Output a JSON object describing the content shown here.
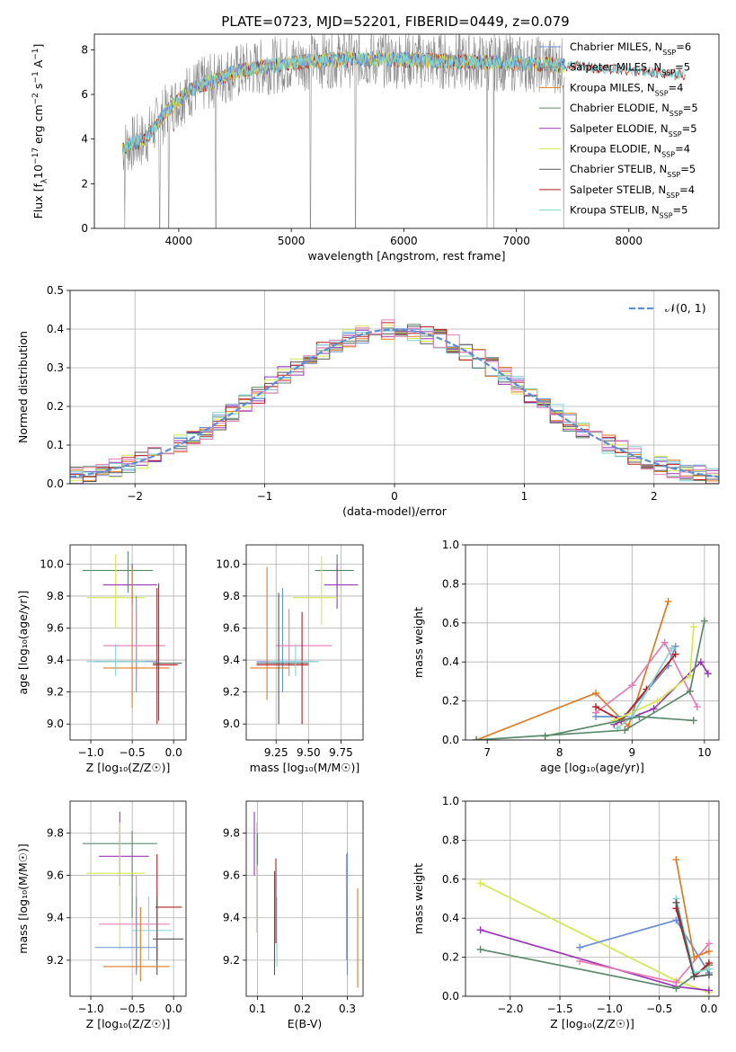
{
  "figure": {
    "title": "PLATE=0723, MJD=52201, FIBERID=0449, z=0.079"
  },
  "colors": {
    "Chabrier MILES": "#6a8fd8",
    "Salpeter MILES": "#8c8c8c",
    "Kroupa MILES": "#e07a1f",
    "Chabrier ELODIE": "#5a8a6a",
    "Salpeter ELODIE": "#9a33b8",
    "Kroupa ELODIE": "#d4e84a",
    "Chabrier STELIB": "#555555",
    "Salpeter STELIB": "#b81c1c",
    "Kroupa STELIB": "#7fd4d4",
    "pink": "#e87ab4",
    "normal": "#5a8fd8"
  },
  "chart_data": [
    {
      "id": "spectrum",
      "type": "line",
      "title": "PLATE=0723, MJD=52201, FIBERID=0449, z=0.079",
      "xlabel": "wavelength [Angstrom, rest frame]",
      "ylabel_parts": [
        "Flux [f",
        "λ",
        "10",
        "−17",
        " erg cm",
        "−2",
        " s",
        "−1",
        " A",
        "−1",
        "]"
      ],
      "xlim": [
        3250,
        8800
      ],
      "ylim": [
        0,
        8.7
      ],
      "xticks": [
        4000,
        5000,
        6000,
        7000,
        8000
      ],
      "xtick_labels": [
        "4000",
        "5000",
        "6000",
        "7000",
        "8000"
      ],
      "yticks": [
        0,
        2,
        4,
        6,
        8
      ],
      "ytick_labels": [
        "0",
        "2",
        "4",
        "6",
        "8"
      ],
      "continuum": {
        "x": [
          3500,
          3700,
          3900,
          4100,
          4300,
          4500,
          4700,
          5000,
          5300,
          5600,
          6000,
          6300,
          6600,
          7000,
          7400,
          7800,
          8200,
          8500
        ],
        "y": [
          3.6,
          4.0,
          5.3,
          6.2,
          6.6,
          7.0,
          7.2,
          7.4,
          7.55,
          7.6,
          7.55,
          7.5,
          7.45,
          7.4,
          7.3,
          7.15,
          7.0,
          6.85
        ]
      },
      "data_range": [
        3500,
        7430
      ],
      "model_range": [
        3500,
        8500
      ],
      "dips": [
        {
          "x": 3520,
          "y": 0.0
        },
        {
          "x": 3830,
          "y": 0.0
        },
        {
          "x": 3910,
          "y": 0.0
        },
        {
          "x": 4330,
          "y": 0.0
        },
        {
          "x": 5170,
          "y": 0.0
        },
        {
          "x": 5570,
          "y": 0.0
        },
        {
          "x": 6740,
          "y": 0.0
        },
        {
          "x": 6800,
          "y": 0.0
        },
        {
          "x": 7420,
          "y": 0.0
        }
      ],
      "legend": {
        "position": "upper right",
        "entries": [
          {
            "name": "Chabrier MILES",
            "n": "6"
          },
          {
            "name": "Salpeter MILES",
            "n": "5"
          },
          {
            "name": "Kroupa MILES",
            "n": "4"
          },
          {
            "name": "Chabrier ELODIE",
            "n": "5"
          },
          {
            "name": "Salpeter ELODIE",
            "n": "5"
          },
          {
            "name": "Kroupa ELODIE",
            "n": "4"
          },
          {
            "name": "Chabrier STELIB",
            "n": "5"
          },
          {
            "name": "Salpeter STELIB",
            "n": "4"
          },
          {
            "name": "Kroupa STELIB",
            "n": "5"
          }
        ],
        "n_label": "N",
        "n_sub": "SSP",
        "n_eq": "="
      }
    },
    {
      "id": "residuals",
      "type": "histogram",
      "xlabel": "(data-model)/error",
      "ylabel": "Normed distribution",
      "xlim": [
        -2.5,
        2.5
      ],
      "ylim": [
        0,
        0.5
      ],
      "xticks": [
        -2,
        -1,
        0,
        1,
        2
      ],
      "xtick_labels": [
        "−2",
        "−1",
        "0",
        "1",
        "2"
      ],
      "yticks": [
        0.0,
        0.1,
        0.2,
        0.3,
        0.4,
        0.5
      ],
      "ytick_labels": [
        "0.0",
        "0.1",
        "0.2",
        "0.3",
        "0.4",
        "0.5"
      ],
      "grid": true,
      "bin_width": 0.1,
      "legend": {
        "label": "𝒩(0, 1)",
        "position": "upper right"
      },
      "reference": {
        "name": "N(0,1)",
        "mu": 0,
        "sigma": 1
      }
    },
    {
      "id": "age-vs-Z",
      "type": "errorbar",
      "xlabel": "Z [log₁₀(Z/Z☉)]",
      "ylabel": "age  [log₁₀(age/yr)]",
      "xlim": [
        -1.25,
        0.15
      ],
      "ylim": [
        8.9,
        10.12
      ],
      "xticks": [
        -1.0,
        -0.5,
        0.0
      ],
      "xtick_labels": [
        "−1.0",
        "−0.5",
        "0.0"
      ],
      "yticks": [
        9.0,
        9.2,
        9.4,
        9.6,
        9.8,
        10.0
      ],
      "ytick_labels": [
        "9.0",
        "9.2",
        "9.4",
        "9.6",
        "9.8",
        "10.0"
      ],
      "points": [
        {
          "c": "Chabrier ELODIE",
          "x": -0.55,
          "xe": [
            -1.1,
            -0.25
          ],
          "y": 9.96,
          "ye": [
            9.82,
            10.08
          ]
        },
        {
          "c": "Kroupa ELODIE",
          "x": -0.7,
          "xe": [
            -1.05,
            -0.35
          ],
          "y": 9.79,
          "ye": [
            9.6,
            10.06
          ]
        },
        {
          "c": "Salpeter ELODIE",
          "x": -0.5,
          "xe": [
            -0.85,
            -0.2
          ],
          "y": 9.87,
          "ye": [
            9.75,
            10.0
          ]
        },
        {
          "c": "Chabrier MILES",
          "x": -0.45,
          "xe": [
            -0.95,
            -0.2
          ],
          "y": 9.39,
          "ye": [
            9.2,
            9.8
          ]
        },
        {
          "c": "pink",
          "x": -0.45,
          "xe": [
            -0.85,
            -0.1
          ],
          "y": 9.49,
          "ye": [
            9.3,
            9.7
          ]
        },
        {
          "c": "Kroupa MILES",
          "x": -0.5,
          "xe": [
            -0.85,
            -0.05
          ],
          "y": 9.35,
          "ye": [
            9.1,
            9.98
          ]
        },
        {
          "c": "Salpeter STELIB",
          "x": -0.2,
          "xe": [
            -0.25,
            0.05
          ],
          "y": 9.37,
          "ye": [
            9.0,
            9.85
          ]
        },
        {
          "c": "Chabrier STELIB",
          "x": -0.18,
          "xe": [
            -0.25,
            0.1
          ],
          "y": 9.38,
          "ye": [
            9.02,
            9.88
          ]
        },
        {
          "c": "Kroupa STELIB",
          "x": -0.7,
          "xe": [
            -1.05,
            -0.35
          ],
          "y": 9.39,
          "ye": [
            9.3,
            9.5
          ]
        }
      ]
    },
    {
      "id": "age-vs-mass",
      "type": "errorbar",
      "xlabel": "mass [log₁₀(M/M☉)]",
      "xlim": [
        9.02,
        9.92
      ],
      "ylim": [
        8.9,
        10.12
      ],
      "xticks": [
        9.25,
        9.5,
        9.75
      ],
      "xtick_labels": [
        "9.25",
        "9.50",
        "9.75"
      ],
      "yticks": [
        9.0,
        9.2,
        9.4,
        9.6,
        9.8,
        10.0
      ],
      "ytick_labels": [
        "9.0",
        "9.2",
        "9.4",
        "9.6",
        "9.8",
        "10.0"
      ],
      "points": [
        {
          "c": "Chabrier ELODIE",
          "x": 9.72,
          "xe": [
            9.55,
            9.85
          ],
          "y": 9.96,
          "ye": [
            9.85,
            10.06
          ]
        },
        {
          "c": "Salpeter ELODIE",
          "x": 9.72,
          "xe": [
            9.62,
            9.88
          ],
          "y": 9.87,
          "ye": [
            9.72,
            10.0
          ]
        },
        {
          "c": "Kroupa ELODIE",
          "x": 9.6,
          "xe": [
            9.38,
            9.72
          ],
          "y": 9.79,
          "ye": [
            9.62,
            10.05
          ]
        },
        {
          "c": "Chabrier MILES",
          "x": 9.3,
          "xe": [
            9.1,
            9.55
          ],
          "y": 9.39,
          "ye": [
            9.2,
            9.85
          ]
        },
        {
          "c": "pink",
          "x": 9.35,
          "xe": [
            9.25,
            9.68
          ],
          "y": 9.49,
          "ye": [
            9.3,
            9.72
          ]
        },
        {
          "c": "Kroupa MILES",
          "x": 9.18,
          "xe": [
            9.05,
            9.35
          ],
          "y": 9.35,
          "ye": [
            9.15,
            9.98
          ]
        },
        {
          "c": "Salpeter STELIB",
          "x": 9.45,
          "xe": [
            9.1,
            9.5
          ],
          "y": 9.37,
          "ye": [
            9.0,
            9.7
          ]
        },
        {
          "c": "Chabrier STELIB",
          "x": 9.27,
          "xe": [
            9.1,
            9.5
          ],
          "y": 9.38,
          "ye": [
            9.0,
            9.82
          ]
        },
        {
          "c": "Kroupa STELIB",
          "x": 9.4,
          "xe": [
            9.2,
            9.58
          ],
          "y": 9.39,
          "ye": [
            9.3,
            9.5
          ]
        }
      ]
    },
    {
      "id": "weight-vs-age",
      "type": "line",
      "xlabel": "age  [log₁₀(age/yr)]",
      "ylabel": "mass weight",
      "xlim": [
        6.7,
        10.2
      ],
      "ylim": [
        0,
        1.0
      ],
      "xticks": [
        7,
        8,
        9,
        10
      ],
      "xtick_labels": [
        "7",
        "8",
        "9",
        "10"
      ],
      "yticks": [
        0.0,
        0.2,
        0.4,
        0.6,
        0.8,
        1.0
      ],
      "ytick_labels": [
        "0.0",
        "0.2",
        "0.4",
        "0.6",
        "0.8",
        "1.0"
      ],
      "grid": true,
      "series": [
        {
          "c": "Kroupa MILES",
          "x": [
            6.85,
            8.5,
            8.95,
            9.5
          ],
          "y": [
            0.0,
            0.24,
            0.07,
            0.71
          ]
        },
        {
          "c": "pink",
          "x": [
            8.5,
            9.0,
            9.45,
            9.9
          ],
          "y": [
            0.14,
            0.28,
            0.5,
            0.17
          ]
        },
        {
          "c": "Chabrier MILES",
          "x": [
            8.5,
            8.9,
            9.5,
            9.6
          ],
          "y": [
            0.12,
            0.12,
            0.38,
            0.48
          ]
        },
        {
          "c": "Salpeter STELIB",
          "x": [
            8.5,
            8.85,
            9.2,
            9.6
          ],
          "y": [
            0.17,
            0.1,
            0.26,
            0.44
          ]
        },
        {
          "c": "Salpeter ELODIE",
          "x": [
            8.75,
            9.3,
            9.95,
            10.05
          ],
          "y": [
            0.08,
            0.16,
            0.4,
            0.34
          ]
        },
        {
          "c": "Kroupa ELODIE",
          "x": [
            8.75,
            9.35,
            9.8,
            9.85
          ],
          "y": [
            0.1,
            0.2,
            0.33,
            0.58
          ]
        },
        {
          "c": "Kroupa STELIB",
          "x": [
            8.8,
            9.0,
            9.55
          ],
          "y": [
            0.06,
            0.12,
            0.47
          ]
        },
        {
          "c": "Chabrier ELODIE",
          "x": [
            6.85,
            8.9,
            9.8,
            10.0
          ],
          "y": [
            0.0,
            0.05,
            0.25,
            0.61
          ]
        },
        {
          "c": "Chabrier ELODIE",
          "x": [
            7.8,
            9.1,
            9.85
          ],
          "y": [
            0.02,
            0.12,
            0.1
          ]
        }
      ]
    },
    {
      "id": "mass-vs-Z",
      "type": "errorbar",
      "xlabel": "Z [log₁₀(Z/Z☉)]",
      "ylabel": "mass [log₁₀(M/M☉)]",
      "xlim": [
        -1.25,
        0.15
      ],
      "ylim": [
        9.03,
        9.95
      ],
      "xticks": [
        -1.0,
        -0.5,
        0.0
      ],
      "xtick_labels": [
        "−1.0",
        "−0.5",
        "0.0"
      ],
      "yticks": [
        9.2,
        9.4,
        9.6,
        9.8
      ],
      "ytick_labels": [
        "9.2",
        "9.4",
        "9.6",
        "9.8"
      ],
      "points": [
        {
          "c": "Chabrier ELODIE",
          "x": -0.5,
          "xe": [
            -1.1,
            -0.2
          ],
          "y": 9.75,
          "ye": [
            9.4,
            9.81
          ]
        },
        {
          "c": "Salpeter ELODIE",
          "x": -0.65,
          "xe": [
            -0.9,
            -0.3
          ],
          "y": 9.69,
          "ye": [
            9.55,
            9.9
          ]
        },
        {
          "c": "Kroupa ELODIE",
          "x": -0.65,
          "xe": [
            -1.05,
            -0.35
          ],
          "y": 9.61,
          "ye": [
            9.25,
            9.85
          ]
        },
        {
          "c": "Salpeter STELIB",
          "x": -0.2,
          "xe": [
            -0.22,
            0.1
          ],
          "y": 9.45,
          "ye": [
            9.2,
            9.7
          ]
        },
        {
          "c": "pink",
          "x": -0.45,
          "xe": [
            -0.9,
            -0.05
          ],
          "y": 9.37,
          "ye": [
            9.15,
            9.6
          ]
        },
        {
          "c": "Kroupa STELIB",
          "x": -0.3,
          "xe": [
            -0.5,
            -0.02
          ],
          "y": 9.34,
          "ye": [
            9.2,
            9.5
          ]
        },
        {
          "c": "Chabrier STELIB",
          "x": -0.2,
          "xe": [
            -0.25,
            0.12
          ],
          "y": 9.3,
          "ye": [
            9.13,
            9.5
          ]
        },
        {
          "c": "Chabrier MILES",
          "x": -0.45,
          "xe": [
            -0.95,
            -0.2
          ],
          "y": 9.26,
          "ye": [
            9.13,
            9.5
          ]
        },
        {
          "c": "Kroupa MILES",
          "x": -0.4,
          "xe": [
            -0.85,
            -0.05
          ],
          "y": 9.17,
          "ye": [
            9.1,
            9.45
          ]
        }
      ]
    },
    {
      "id": "mass-vs-ebv",
      "type": "errorbar",
      "xlabel": "E(B-V)",
      "xlim": [
        0.075,
        0.335
      ],
      "ylim": [
        9.03,
        9.95
      ],
      "xticks": [
        0.1,
        0.2,
        0.3
      ],
      "xtick_labels": [
        "0.1",
        "0.2",
        "0.3"
      ],
      "yticks": [
        9.2,
        9.4,
        9.6,
        9.8
      ],
      "ytick_labels": [
        "9.2",
        "9.4",
        "9.6",
        "9.8"
      ],
      "points": [
        {
          "c": "Salpeter ELODIE",
          "x": 0.093,
          "y": 9.75,
          "ye": [
            9.6,
            9.9
          ]
        },
        {
          "c": "Kroupa ELODIE",
          "x": 0.098,
          "y": 9.6,
          "ye": [
            9.33,
            9.85
          ]
        },
        {
          "c": "Chabrier ELODIE",
          "x": 0.1,
          "y": 9.75,
          "ye": [
            9.65,
            9.8
          ]
        },
        {
          "c": "Chabrier STELIB",
          "x": 0.138,
          "y": 9.4,
          "ye": [
            9.13,
            9.62
          ]
        },
        {
          "c": "Salpeter STELIB",
          "x": 0.141,
          "y": 9.5,
          "ye": [
            9.28,
            9.68
          ]
        },
        {
          "c": "Kroupa STELIB",
          "x": 0.143,
          "y": 9.35,
          "ye": [
            9.17,
            9.5
          ]
        },
        {
          "c": "Chabrier MILES",
          "x": 0.3,
          "y": 9.3,
          "ye": [
            9.13,
            9.71
          ]
        },
        {
          "c": "pink",
          "x": 0.298,
          "y": 9.4,
          "ye": [
            9.2,
            9.7
          ]
        },
        {
          "c": "Kroupa MILES",
          "x": 0.323,
          "y": 9.3,
          "ye": [
            9.07,
            9.54
          ]
        }
      ]
    },
    {
      "id": "weight-vs-Z",
      "type": "line",
      "xlabel": "Z [log₁₀(Z/Z☉)]",
      "ylabel": "mass weight",
      "xlim": [
        -2.45,
        0.1
      ],
      "ylim": [
        0,
        1.0
      ],
      "xticks": [
        -2.0,
        -1.5,
        -1.0,
        -0.5,
        0.0
      ],
      "xtick_labels": [
        "−2.0",
        "−1.5",
        "−1.0",
        "−0.5",
        "0.0"
      ],
      "yticks": [
        0.0,
        0.2,
        0.4,
        0.6,
        0.8,
        1.0
      ],
      "ytick_labels": [
        "0.0",
        "0.2",
        "0.4",
        "0.6",
        "0.8",
        "1.0"
      ],
      "grid": true,
      "series": [
        {
          "c": "Kroupa ELODIE",
          "x": [
            -2.3,
            -0.33,
            0.0
          ],
          "y": [
            0.58,
            0.08,
            0.02
          ]
        },
        {
          "c": "Salpeter ELODIE",
          "x": [
            -2.3,
            -0.33,
            0.0
          ],
          "y": [
            0.34,
            0.05,
            0.03
          ]
        },
        {
          "c": "Chabrier ELODIE",
          "x": [
            -2.3,
            -0.33,
            0.0
          ],
          "y": [
            0.24,
            0.04,
            0.16
          ]
        },
        {
          "c": "Chabrier MILES",
          "x": [
            -1.3,
            -0.33,
            0.0
          ],
          "y": [
            0.25,
            0.39,
            0.12
          ]
        },
        {
          "c": "pink",
          "x": [
            -1.3,
            -0.33,
            0.0
          ],
          "y": [
            0.18,
            0.07,
            0.27
          ]
        },
        {
          "c": "Kroupa MILES",
          "x": [
            -0.33,
            -0.15,
            0.0
          ],
          "y": [
            0.7,
            0.2,
            0.23
          ]
        },
        {
          "c": "Salpeter STELIB",
          "x": [
            -0.33,
            -0.15,
            0.0
          ],
          "y": [
            0.45,
            0.1,
            0.17
          ]
        },
        {
          "c": "Kroupa STELIB",
          "x": [
            -0.33,
            -0.15,
            0.0
          ],
          "y": [
            0.5,
            0.12,
            0.14
          ]
        },
        {
          "c": "Chabrier STELIB",
          "x": [
            -0.33,
            -0.15,
            0.0
          ],
          "y": [
            0.48,
            0.1,
            0.11
          ]
        }
      ]
    }
  ]
}
